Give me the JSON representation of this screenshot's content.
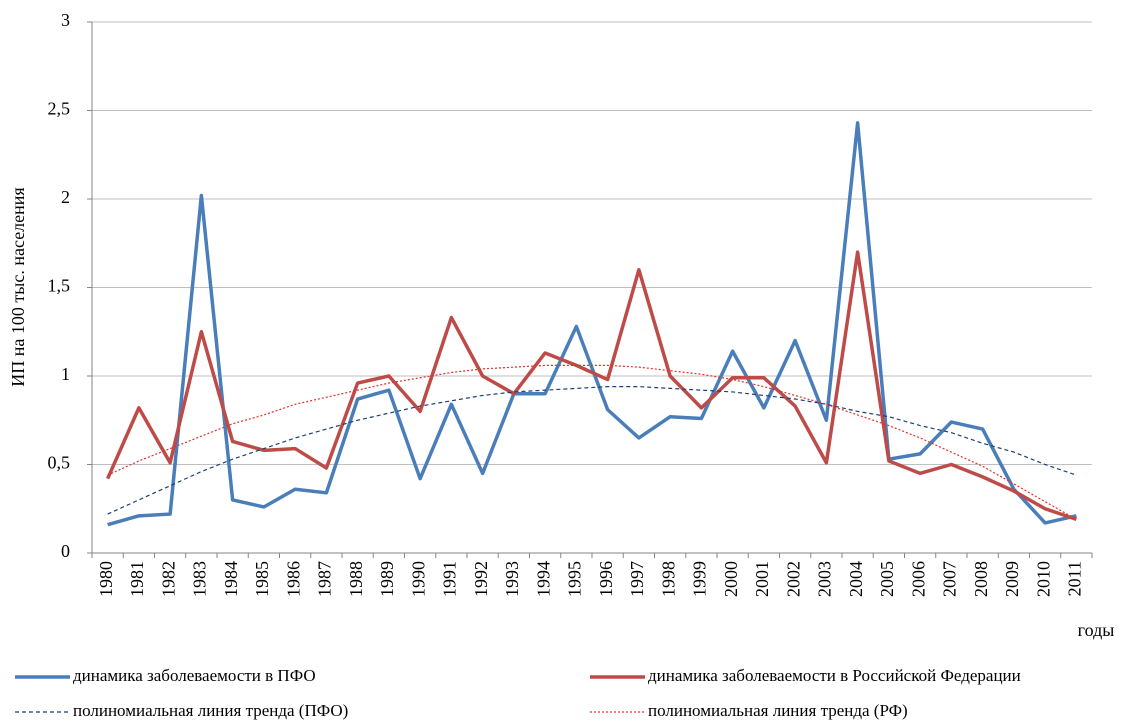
{
  "chart_data": {
    "type": "line",
    "y_label": "ИП на 100 тыс. населения",
    "x_label": "годы",
    "categories": [
      "1980",
      "1981",
      "1982",
      "1983",
      "1984",
      "1985",
      "1986",
      "1987",
      "1988",
      "1989",
      "1990",
      "1991",
      "1992",
      "1993",
      "1994",
      "1995",
      "1996",
      "1997",
      "1998",
      "1999",
      "2000",
      "2001",
      "2002",
      "2003",
      "2004",
      "2005",
      "2006",
      "2007",
      "2008",
      "2009",
      "2010",
      "2011"
    ],
    "series": [
      {
        "name": "динамика заболеваемости в ПФО",
        "color": "#4a7ebb",
        "style": "solid",
        "values": [
          0.16,
          0.21,
          0.22,
          2.02,
          0.3,
          0.26,
          0.36,
          0.34,
          0.87,
          0.92,
          0.42,
          0.84,
          0.45,
          0.9,
          0.9,
          1.28,
          0.81,
          0.65,
          0.77,
          0.76,
          1.14,
          0.82,
          1.2,
          0.75,
          2.43,
          0.53,
          0.56,
          0.74,
          0.7,
          0.36,
          0.17,
          0.21
        ]
      },
      {
        "name": "динамика заболеваемости в Российской Федерации",
        "color": "#be4b48",
        "style": "solid",
        "values": [
          0.42,
          0.82,
          0.51,
          1.25,
          0.63,
          0.58,
          0.59,
          0.48,
          0.96,
          1.0,
          0.8,
          1.33,
          1.0,
          0.9,
          1.13,
          1.06,
          0.98,
          1.6,
          1.0,
          0.82,
          0.99,
          0.99,
          0.83,
          0.51,
          1.7,
          0.52,
          0.45,
          0.5,
          0.43,
          0.35,
          0.25,
          0.19
        ]
      },
      {
        "name": "полиномиальная линия тренда (ПФО)",
        "color": "#1f3f77",
        "style": "dashed",
        "values": [
          0.22,
          0.3,
          0.38,
          0.46,
          0.53,
          0.59,
          0.65,
          0.7,
          0.75,
          0.79,
          0.83,
          0.86,
          0.89,
          0.91,
          0.92,
          0.93,
          0.94,
          0.94,
          0.93,
          0.92,
          0.91,
          0.89,
          0.87,
          0.84,
          0.8,
          0.77,
          0.72,
          0.68,
          0.62,
          0.57,
          0.5,
          0.44
        ]
      },
      {
        "name": "полиномиальная линия тренда (РФ)",
        "color": "#e0302a",
        "style": "dotted",
        "values": [
          0.44,
          0.52,
          0.59,
          0.66,
          0.73,
          0.78,
          0.84,
          0.88,
          0.92,
          0.96,
          0.99,
          1.02,
          1.04,
          1.05,
          1.06,
          1.06,
          1.06,
          1.05,
          1.03,
          1.01,
          0.98,
          0.94,
          0.89,
          0.84,
          0.78,
          0.72,
          0.65,
          0.57,
          0.49,
          0.39,
          0.29,
          0.19
        ]
      }
    ],
    "ylim": [
      0,
      3
    ],
    "yticks": [
      0,
      {
        "value": 0.5,
        "label": "0,5"
      },
      1,
      {
        "value": 1.5,
        "label": "1,5"
      },
      2,
      {
        "value": 2.5,
        "label": "2,5"
      },
      3
    ],
    "grid": true
  }
}
